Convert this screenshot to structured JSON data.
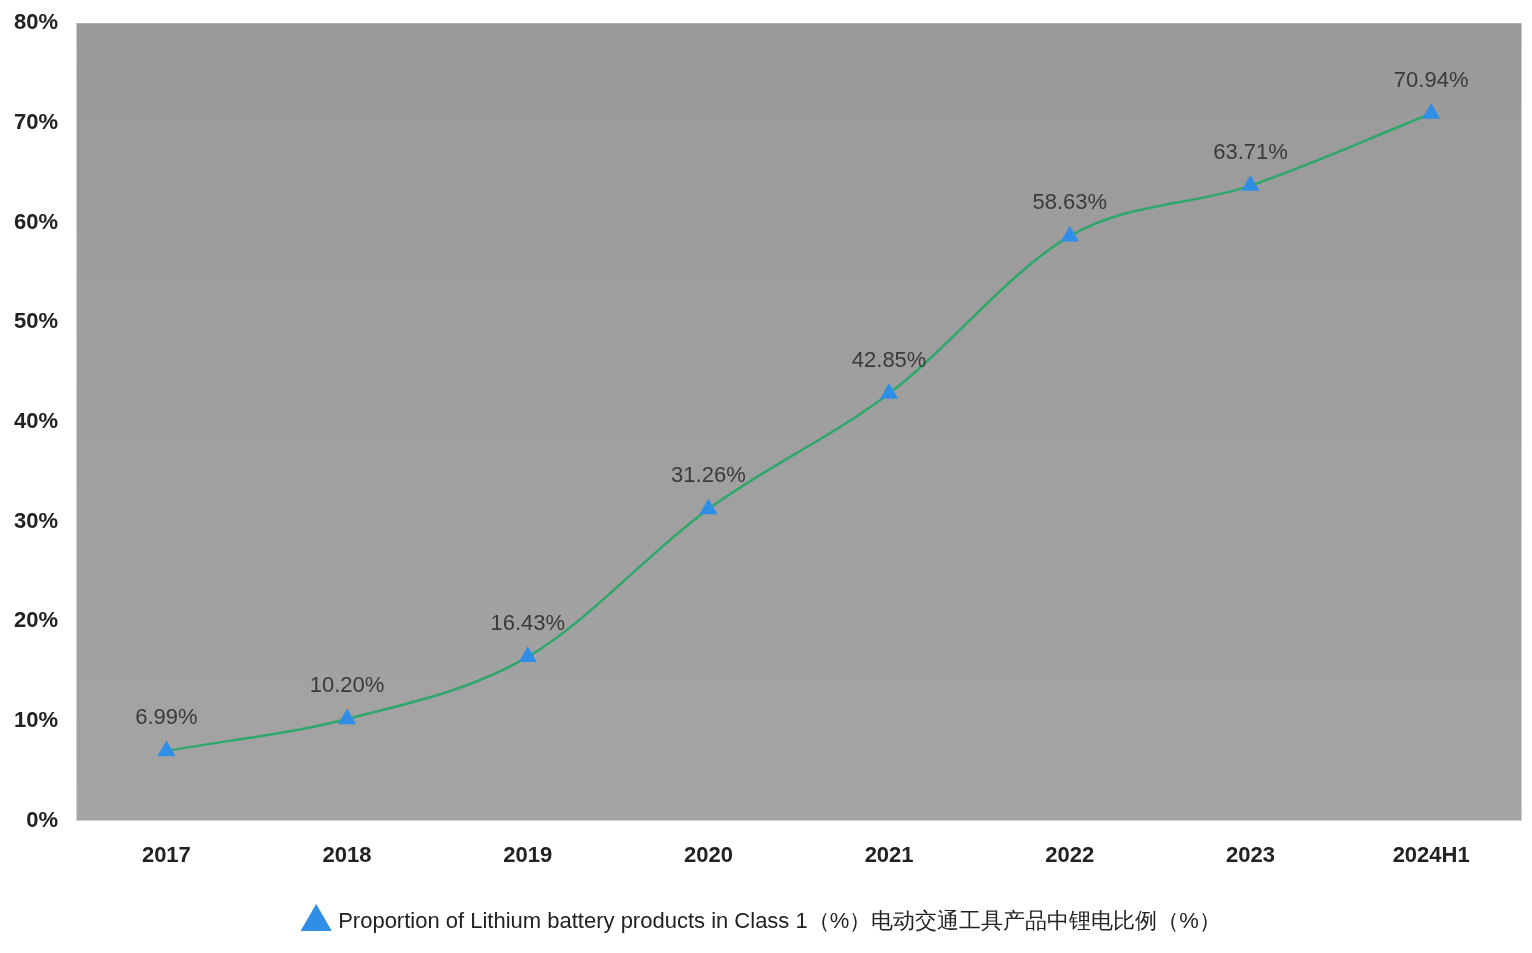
{
  "chart_data": {
    "type": "line",
    "categories": [
      "2017",
      "2018",
      "2019",
      "2020",
      "2021",
      "2022",
      "2023",
      "2024H1"
    ],
    "series": [
      {
        "name": "Proportion of Lithium battery products in Class 1（%）电动交通工具产品中锂电比例（%）",
        "color": "#2ea86a",
        "marker": "triangle",
        "values": [
          6.99,
          10.2,
          16.43,
          31.26,
          42.85,
          58.63,
          63.71,
          70.94
        ],
        "value_labels": [
          "6.99%",
          "10.20%",
          "16.43%",
          "31.26%",
          "42.85%",
          "58.63%",
          "63.71%",
          "70.94%"
        ]
      }
    ],
    "ylim": [
      0,
      80
    ],
    "yticks": [
      {
        "value": 0,
        "label": "0%"
      },
      {
        "value": 10,
        "label": "10%"
      },
      {
        "value": 20,
        "label": "20%"
      },
      {
        "value": 30,
        "label": "30%"
      },
      {
        "value": 40,
        "label": "40%"
      },
      {
        "value": 50,
        "label": "50%"
      },
      {
        "value": 60,
        "label": "60%"
      },
      {
        "value": 70,
        "label": "70%"
      },
      {
        "value": 80,
        "label": "80%"
      }
    ],
    "grid": false,
    "legend": "bottom",
    "data_labels": true
  }
}
